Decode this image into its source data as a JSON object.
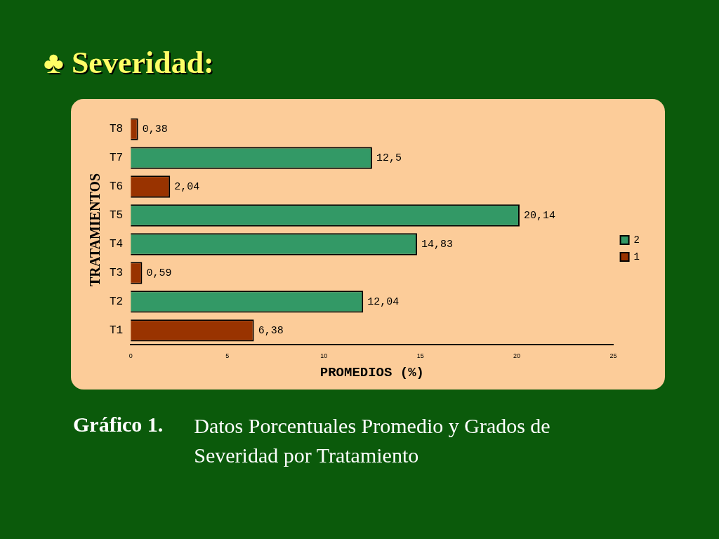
{
  "chart_data": {
    "type": "bar",
    "orientation": "horizontal",
    "title": "♣ Severidad:",
    "xlabel": "PROMEDIOS (%)",
    "ylabel": "TRATAMIENTOS",
    "categories": [
      "T8",
      "T7",
      "T6",
      "T5",
      "T4",
      "T3",
      "T2",
      "T1"
    ],
    "series": [
      {
        "name": "2",
        "color": "#339966",
        "values": [
          null,
          12.5,
          null,
          20.14,
          14.83,
          null,
          12.04,
          null
        ],
        "value_labels": [
          null,
          "12,5",
          null,
          "20,14",
          "14,83",
          null,
          "12,04",
          null
        ]
      },
      {
        "name": "1",
        "color": "#993300",
        "values": [
          0.38,
          null,
          2.04,
          null,
          null,
          0.59,
          null,
          6.38
        ],
        "value_labels": [
          "0,38",
          null,
          "2,04",
          null,
          null,
          "0,59",
          null,
          "6,38"
        ]
      }
    ],
    "xlim": [
      0,
      25
    ],
    "xticks": [
      0,
      5,
      10,
      15,
      20,
      25
    ],
    "grid": false,
    "legend": "right",
    "annotations": [
      "Gráfico 1.",
      "Datos Porcentuales Promedio y Grados de Severidad por Tratamiento"
    ]
  }
}
